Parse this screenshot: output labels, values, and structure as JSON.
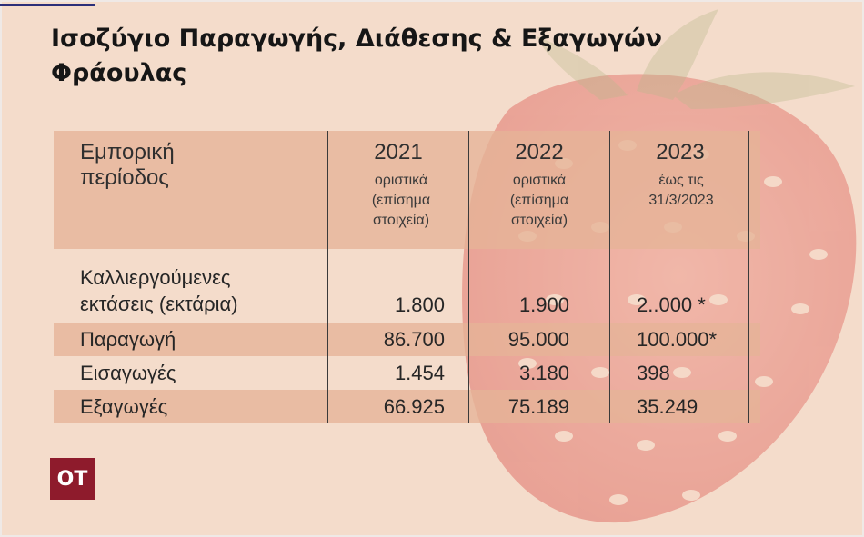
{
  "title": "Ισοζύγιο Παραγωγής, Διάθεσης & Εξαγωγών Φράουλας",
  "table": {
    "header_label": "Εμπορική περίοδος",
    "columns": [
      {
        "year": "2021",
        "note": "οριστικά (επίσημα στοιχεία)"
      },
      {
        "year": "2022",
        "note": "οριστικά (επίσημα στοιχεία)"
      },
      {
        "year": "2023",
        "note": "έως τις 31/3/2023"
      }
    ],
    "rows": [
      {
        "label": "Καλλιεργούμενες εκτάσεις (εκτάρια)",
        "values": [
          "1.800",
          "1.900",
          "2..000 *"
        ]
      },
      {
        "label": "Παραγωγή",
        "values": [
          "86.700",
          "95.000",
          "100.000*"
        ]
      },
      {
        "label": "Εισαγωγές",
        "values": [
          "1.454",
          "3.180",
          "398"
        ]
      },
      {
        "label": "Εξαγωγές",
        "values": [
          "66.925",
          "75.189",
          "35.249"
        ]
      }
    ]
  },
  "logo": "OT",
  "colors": {
    "background": "#f4dccb",
    "band": "#e5b397",
    "logo": "#8e1b2c",
    "accent_line": "#2b2f7a"
  }
}
